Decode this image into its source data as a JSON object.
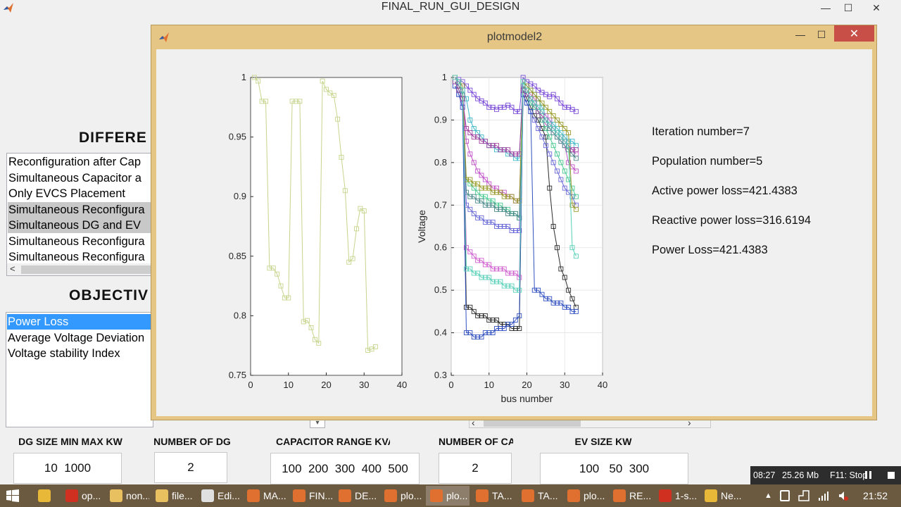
{
  "main_window": {
    "title": "FINAL_RUN_GUI_DESIGN",
    "minimize_glyph": "—",
    "maximize_glyph": "☐",
    "close_glyph": "✕"
  },
  "gui": {
    "heading_different": "DIFFERE",
    "heading_objective": "OBJECTIV",
    "config_list": {
      "items": [
        "Reconfiguration after Cap",
        "Simultaneous Capacitor a",
        "Only EVCS Placement",
        "Simultaneous Reconfigura",
        "Simultaneous DG and EV",
        "Simultaneous Reconfigura",
        "Simultaneous Reconfigura"
      ],
      "scroll_left": "<"
    },
    "objective_list": {
      "items": [
        "Power Loss",
        "Average Voltage Deviation",
        "Voltage stability Index"
      ]
    },
    "scroll_right_arrow": "›",
    "scroll_left_arrow": "‹",
    "params": {
      "dg_size_label": "DG SIZE MIN MAX KW",
      "dg_size_value": "10  1000",
      "num_dg_label": "NUMBER OF DG",
      "num_dg_value": "2",
      "cap_range_label": "CAPACITOR RANGE KVAR",
      "cap_range_value": "100  200  300  400  500",
      "num_cap_label": "NUMBER OF CAPACITOR",
      "num_cap_value": "2",
      "ev_size_label": "EV SIZE KW",
      "ev_size_value": "100   50  300"
    }
  },
  "figure_window": {
    "title": "plotmodel2",
    "close_glyph": "✕",
    "minimize_glyph": "—",
    "maximize_glyph": "☐",
    "info": [
      "Iteration number=7",
      "Population number=5",
      "Active power loss=421.4383",
      "Reactive power loss=316.6194",
      "Power Loss=421.4383"
    ]
  },
  "chart_data": [
    {
      "type": "line",
      "marker": "square",
      "xlim": [
        0,
        40
      ],
      "ylim": [
        0.75,
        1
      ],
      "xticks": [
        "0",
        "10",
        "20",
        "30",
        "40"
      ],
      "yticks": [
        "0.75",
        "0.8",
        "0.85",
        "0.9",
        "0.95",
        "1"
      ],
      "xlabel": "",
      "ylabel": "",
      "grid": false,
      "series": [
        {
          "color": "#c6d48c",
          "x": [
            1,
            2,
            3,
            4,
            5,
            6,
            7,
            8,
            9,
            10,
            11,
            12,
            13,
            14,
            15,
            16,
            17,
            18,
            19,
            20,
            21,
            22,
            23,
            24,
            25,
            26,
            27,
            28,
            29,
            30,
            31,
            32,
            33
          ],
          "y": [
            1.0,
            0.997,
            0.98,
            0.98,
            0.84,
            0.84,
            0.835,
            0.825,
            0.815,
            0.815,
            0.98,
            0.98,
            0.98,
            0.795,
            0.796,
            0.79,
            0.78,
            0.777,
            0.997,
            0.99,
            0.987,
            0.985,
            0.965,
            0.933,
            0.905,
            0.845,
            0.848,
            0.873,
            0.89,
            0.888,
            0.771,
            0.772,
            0.774
          ]
        }
      ]
    },
    {
      "type": "line",
      "marker": "square",
      "xlim": [
        0,
        40
      ],
      "ylim": [
        0.3,
        1
      ],
      "xticks": [
        "0",
        "10",
        "20",
        "30",
        "40"
      ],
      "yticks": [
        "0.3",
        "0.4",
        "0.5",
        "0.6",
        "0.7",
        "0.8",
        "0.9",
        "1"
      ],
      "xlabel": "bus number",
      "ylabel": "Voltage",
      "grid": true,
      "palette": [
        "#7a4ad8",
        "#3fb8c8",
        "#c050c8",
        "#2b2b2b",
        "#6a6ad8",
        "#48c890",
        "#d060d0",
        "#4a8a8a",
        "#9a9a2a",
        "#3050c0",
        "#a040a0",
        "#58d0b8"
      ],
      "series": [
        {
          "name": "",
          "y": [
            1.0,
            0.995,
            0.99,
            0.98,
            0.97,
            0.96,
            0.95,
            0.945,
            0.94,
            0.93,
            0.93,
            0.925,
            0.93,
            0.93,
            0.935,
            0.93,
            0.92,
            0.92,
            1.0,
            0.99,
            0.985,
            0.98,
            0.97,
            0.965,
            0.96,
            0.955,
            0.96,
            0.95,
            0.94,
            0.93,
            0.93,
            0.925,
            0.92
          ]
        },
        {
          "name": "",
          "y": [
            1.0,
            0.99,
            0.97,
            0.95,
            0.9,
            0.88,
            0.87,
            0.86,
            0.85,
            0.84,
            0.84,
            0.83,
            0.83,
            0.83,
            0.82,
            0.82,
            0.81,
            0.81,
            0.99,
            0.98,
            0.97,
            0.96,
            0.95,
            0.93,
            0.91,
            0.9,
            0.89,
            0.88,
            0.87,
            0.86,
            0.85,
            0.85,
            0.84
          ]
        },
        {
          "name": "",
          "y": [
            1.0,
            0.98,
            0.96,
            0.85,
            0.82,
            0.8,
            0.78,
            0.77,
            0.76,
            0.75,
            0.74,
            0.74,
            0.73,
            0.73,
            0.72,
            0.72,
            0.71,
            0.71,
            0.98,
            0.97,
            0.95,
            0.93,
            0.92,
            0.9,
            0.89,
            0.88,
            0.87,
            0.86,
            0.85,
            0.84,
            0.8,
            0.79,
            0.78
          ]
        },
        {
          "name": "",
          "y": [
            0.99,
            0.97,
            0.95,
            0.46,
            0.46,
            0.45,
            0.44,
            0.44,
            0.44,
            0.43,
            0.43,
            0.43,
            0.42,
            0.42,
            0.42,
            0.41,
            0.41,
            0.41,
            0.97,
            0.95,
            0.93,
            0.91,
            0.9,
            0.88,
            0.86,
            0.74,
            0.65,
            0.6,
            0.55,
            0.53,
            0.5,
            0.48,
            0.46
          ]
        },
        {
          "name": "",
          "y": [
            0.98,
            0.96,
            0.94,
            0.7,
            0.69,
            0.68,
            0.67,
            0.67,
            0.66,
            0.66,
            0.66,
            0.65,
            0.65,
            0.65,
            0.65,
            0.64,
            0.64,
            0.64,
            0.96,
            0.94,
            0.92,
            0.9,
            0.88,
            0.86,
            0.84,
            0.82,
            0.8,
            0.78,
            0.76,
            0.74,
            0.73,
            0.72,
            0.7
          ]
        },
        {
          "name": "",
          "y": [
            0.99,
            0.97,
            0.95,
            0.76,
            0.75,
            0.74,
            0.73,
            0.72,
            0.72,
            0.71,
            0.71,
            0.7,
            0.7,
            0.69,
            0.69,
            0.68,
            0.68,
            0.67,
            0.97,
            0.96,
            0.94,
            0.93,
            0.92,
            0.9,
            0.88,
            0.86,
            0.84,
            0.82,
            0.8,
            0.78,
            0.76,
            0.74,
            0.72
          ]
        },
        {
          "name": "",
          "y": [
            1.0,
            0.98,
            0.97,
            0.6,
            0.59,
            0.58,
            0.57,
            0.57,
            0.56,
            0.56,
            0.55,
            0.55,
            0.55,
            0.55,
            0.54,
            0.54,
            0.54,
            0.53,
            0.98,
            0.97,
            0.96,
            0.95,
            0.93,
            0.92,
            0.91,
            0.9,
            0.88,
            0.87,
            0.86,
            0.85,
            0.84,
            0.83,
            0.82
          ]
        },
        {
          "name": "",
          "y": [
            0.99,
            0.98,
            0.96,
            0.73,
            0.72,
            0.72,
            0.71,
            0.71,
            0.7,
            0.7,
            0.7,
            0.69,
            0.69,
            0.69,
            0.68,
            0.68,
            0.68,
            0.67,
            0.98,
            0.96,
            0.95,
            0.94,
            0.92,
            0.91,
            0.9,
            0.88,
            0.87,
            0.86,
            0.85,
            0.84,
            0.83,
            0.82,
            0.81
          ]
        },
        {
          "name": "",
          "y": [
            1.0,
            0.99,
            0.98,
            0.76,
            0.76,
            0.75,
            0.75,
            0.74,
            0.74,
            0.74,
            0.73,
            0.73,
            0.73,
            0.72,
            0.72,
            0.72,
            0.71,
            0.71,
            0.99,
            0.98,
            0.97,
            0.96,
            0.95,
            0.94,
            0.93,
            0.92,
            0.91,
            0.9,
            0.89,
            0.88,
            0.87,
            0.7,
            0.69
          ]
        },
        {
          "name": "",
          "y": [
            0.98,
            0.96,
            0.93,
            0.4,
            0.4,
            0.39,
            0.39,
            0.39,
            0.4,
            0.4,
            0.4,
            0.41,
            0.41,
            0.41,
            0.42,
            0.42,
            0.43,
            0.44,
            0.96,
            0.94,
            0.92,
            0.5,
            0.5,
            0.49,
            0.48,
            0.48,
            0.47,
            0.47,
            0.47,
            0.46,
            0.46,
            0.45,
            0.45
          ]
        },
        {
          "name": "",
          "y": [
            0.99,
            0.97,
            0.95,
            0.88,
            0.87,
            0.86,
            0.86,
            0.85,
            0.85,
            0.84,
            0.84,
            0.84,
            0.83,
            0.83,
            0.83,
            0.82,
            0.82,
            0.82,
            0.97,
            0.96,
            0.95,
            0.94,
            0.92,
            0.91,
            0.9,
            0.89,
            0.88,
            0.87,
            0.86,
            0.85,
            0.84,
            0.83,
            0.83
          ]
        },
        {
          "name": "",
          "y": [
            1.0,
            0.99,
            0.97,
            0.55,
            0.55,
            0.54,
            0.54,
            0.53,
            0.53,
            0.53,
            0.52,
            0.52,
            0.52,
            0.51,
            0.51,
            0.51,
            0.5,
            0.5,
            0.99,
            0.97,
            0.95,
            0.94,
            0.93,
            0.92,
            0.9,
            0.89,
            0.88,
            0.87,
            0.86,
            0.85,
            0.84,
            0.6,
            0.58
          ]
        }
      ]
    }
  ],
  "recorder": {
    "time": "08:27",
    "size": "25.26 Mb",
    "stop": "F11: Stop"
  },
  "taskbar": {
    "clock": "21:52",
    "items": [
      {
        "label": "",
        "color": "#e8b838"
      },
      {
        "label": "op...",
        "color": "#d03020"
      },
      {
        "label": "non...",
        "color": "#e8c060"
      },
      {
        "label": "file...",
        "color": "#e8c060"
      },
      {
        "label": "Edi...",
        "color": "#e0e0e0"
      },
      {
        "label": "MA...",
        "color": "#e07030"
      },
      {
        "label": "FIN...",
        "color": "#e07030"
      },
      {
        "label": "DE...",
        "color": "#e07030"
      },
      {
        "label": "plo...",
        "color": "#e07030"
      },
      {
        "label": "plo...",
        "color": "#e07030"
      },
      {
        "label": "TA...",
        "color": "#e07030"
      },
      {
        "label": "TA...",
        "color": "#e07030"
      },
      {
        "label": "plo...",
        "color": "#e07030"
      },
      {
        "label": "RE...",
        "color": "#e07030"
      },
      {
        "label": "1-s...",
        "color": "#d03020"
      },
      {
        "label": "Ne...",
        "color": "#e8b838"
      }
    ]
  }
}
